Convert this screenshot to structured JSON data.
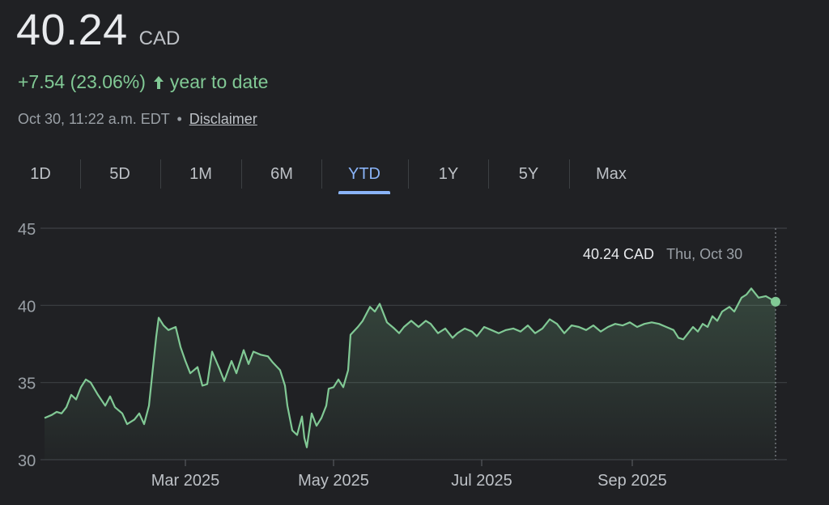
{
  "quote": {
    "price": "40.24",
    "currency": "CAD",
    "change": "+7.54 (23.06%)",
    "change_period": "year to date",
    "timestamp": "Oct 30, 11:22 a.m. EDT",
    "separator": "•",
    "disclaimer": "Disclaimer"
  },
  "tabs": [
    {
      "label": "1D",
      "active": false
    },
    {
      "label": "5D",
      "active": false
    },
    {
      "label": "1M",
      "active": false
    },
    {
      "label": "6M",
      "active": false
    },
    {
      "label": "YTD",
      "active": true
    },
    {
      "label": "1Y",
      "active": false
    },
    {
      "label": "5Y",
      "active": false
    },
    {
      "label": "Max",
      "active": false
    }
  ],
  "tooltip": {
    "price": "40.24 CAD",
    "date": "Thu, Oct 30"
  },
  "colors": {
    "up": "#81c995",
    "active_tab": "#8ab4f8",
    "background": "#202124"
  },
  "chart_data": {
    "type": "area",
    "x_axis": "dates",
    "xlim": [
      "2025-01-02",
      "2025-10-30"
    ],
    "ylim": [
      30,
      45
    ],
    "y_ticks": [
      30,
      35,
      40,
      45
    ],
    "x_ticks": [
      {
        "date": "2025-03-01",
        "label": "Mar 2025"
      },
      {
        "date": "2025-05-01",
        "label": "May 2025"
      },
      {
        "date": "2025-07-01",
        "label": "Jul 2025"
      },
      {
        "date": "2025-09-01",
        "label": "Sep 2025"
      }
    ],
    "grid": "horizontal",
    "series": [
      {
        "values": [
          [
            "2025-01-02",
            32.7
          ],
          [
            "2025-01-05",
            32.9
          ],
          [
            "2025-01-07",
            33.1
          ],
          [
            "2025-01-09",
            33.0
          ],
          [
            "2025-01-11",
            33.4
          ],
          [
            "2025-01-13",
            34.2
          ],
          [
            "2025-01-15",
            33.9
          ],
          [
            "2025-01-17",
            34.7
          ],
          [
            "2025-01-19",
            35.2
          ],
          [
            "2025-01-21",
            35.0
          ],
          [
            "2025-01-24",
            34.2
          ],
          [
            "2025-01-27",
            33.5
          ],
          [
            "2025-01-29",
            34.1
          ],
          [
            "2025-01-31",
            33.4
          ],
          [
            "2025-02-03",
            33.0
          ],
          [
            "2025-02-05",
            32.3
          ],
          [
            "2025-02-08",
            32.6
          ],
          [
            "2025-02-10",
            33.0
          ],
          [
            "2025-02-12",
            32.3
          ],
          [
            "2025-02-14",
            33.5
          ],
          [
            "2025-02-17",
            38.0
          ],
          [
            "2025-02-18",
            39.2
          ],
          [
            "2025-02-20",
            38.7
          ],
          [
            "2025-02-22",
            38.4
          ],
          [
            "2025-02-25",
            38.6
          ],
          [
            "2025-02-27",
            37.3
          ],
          [
            "2025-03-01",
            36.4
          ],
          [
            "2025-03-03",
            35.6
          ],
          [
            "2025-03-06",
            36.0
          ],
          [
            "2025-03-08",
            34.8
          ],
          [
            "2025-03-10",
            34.9
          ],
          [
            "2025-03-12",
            37.0
          ],
          [
            "2025-03-15",
            35.9
          ],
          [
            "2025-03-17",
            35.1
          ],
          [
            "2025-03-20",
            36.4
          ],
          [
            "2025-03-22",
            35.6
          ],
          [
            "2025-03-25",
            37.1
          ],
          [
            "2025-03-27",
            36.2
          ],
          [
            "2025-03-29",
            37.0
          ],
          [
            "2025-04-01",
            36.8
          ],
          [
            "2025-04-04",
            36.7
          ],
          [
            "2025-04-06",
            36.3
          ],
          [
            "2025-04-09",
            35.8
          ],
          [
            "2025-04-11",
            34.8
          ],
          [
            "2025-04-12",
            33.5
          ],
          [
            "2025-04-14",
            31.9
          ],
          [
            "2025-04-16",
            31.6
          ],
          [
            "2025-04-18",
            32.8
          ],
          [
            "2025-04-19",
            31.4
          ],
          [
            "2025-04-20",
            30.8
          ],
          [
            "2025-04-22",
            33.0
          ],
          [
            "2025-04-24",
            32.2
          ],
          [
            "2025-04-26",
            32.7
          ],
          [
            "2025-04-28",
            33.5
          ],
          [
            "2025-04-29",
            34.6
          ],
          [
            "2025-05-01",
            34.7
          ],
          [
            "2025-05-03",
            35.2
          ],
          [
            "2025-05-05",
            34.7
          ],
          [
            "2025-05-07",
            35.8
          ],
          [
            "2025-05-08",
            38.1
          ],
          [
            "2025-05-11",
            38.6
          ],
          [
            "2025-05-13",
            39.0
          ],
          [
            "2025-05-16",
            39.9
          ],
          [
            "2025-05-18",
            39.6
          ],
          [
            "2025-05-20",
            40.1
          ],
          [
            "2025-05-23",
            38.9
          ],
          [
            "2025-05-26",
            38.5
          ],
          [
            "2025-05-28",
            38.2
          ],
          [
            "2025-05-30",
            38.6
          ],
          [
            "2025-06-02",
            39.0
          ],
          [
            "2025-06-05",
            38.6
          ],
          [
            "2025-06-08",
            39.0
          ],
          [
            "2025-06-10",
            38.8
          ],
          [
            "2025-06-13",
            38.2
          ],
          [
            "2025-06-16",
            38.5
          ],
          [
            "2025-06-19",
            37.9
          ],
          [
            "2025-06-21",
            38.2
          ],
          [
            "2025-06-24",
            38.5
          ],
          [
            "2025-06-27",
            38.3
          ],
          [
            "2025-06-29",
            38.0
          ],
          [
            "2025-07-02",
            38.6
          ],
          [
            "2025-07-05",
            38.4
          ],
          [
            "2025-07-08",
            38.2
          ],
          [
            "2025-07-11",
            38.4
          ],
          [
            "2025-07-14",
            38.5
          ],
          [
            "2025-07-17",
            38.3
          ],
          [
            "2025-07-20",
            38.7
          ],
          [
            "2025-07-23",
            38.2
          ],
          [
            "2025-07-26",
            38.5
          ],
          [
            "2025-07-29",
            39.1
          ],
          [
            "2025-08-01",
            38.8
          ],
          [
            "2025-08-04",
            38.2
          ],
          [
            "2025-08-07",
            38.7
          ],
          [
            "2025-08-10",
            38.6
          ],
          [
            "2025-08-13",
            38.4
          ],
          [
            "2025-08-16",
            38.7
          ],
          [
            "2025-08-19",
            38.3
          ],
          [
            "2025-08-22",
            38.6
          ],
          [
            "2025-08-25",
            38.8
          ],
          [
            "2025-08-28",
            38.7
          ],
          [
            "2025-08-31",
            38.9
          ],
          [
            "2025-09-03",
            38.6
          ],
          [
            "2025-09-06",
            38.8
          ],
          [
            "2025-09-09",
            38.9
          ],
          [
            "2025-09-12",
            38.8
          ],
          [
            "2025-09-15",
            38.6
          ],
          [
            "2025-09-18",
            38.4
          ],
          [
            "2025-09-20",
            37.9
          ],
          [
            "2025-09-22",
            37.8
          ],
          [
            "2025-09-24",
            38.2
          ],
          [
            "2025-09-26",
            38.6
          ],
          [
            "2025-09-28",
            38.3
          ],
          [
            "2025-09-30",
            38.8
          ],
          [
            "2025-10-02",
            38.6
          ],
          [
            "2025-10-04",
            39.3
          ],
          [
            "2025-10-06",
            39.0
          ],
          [
            "2025-10-08",
            39.6
          ],
          [
            "2025-10-11",
            39.9
          ],
          [
            "2025-10-13",
            39.6
          ],
          [
            "2025-10-16",
            40.5
          ],
          [
            "2025-10-18",
            40.7
          ],
          [
            "2025-10-20",
            41.1
          ],
          [
            "2025-10-23",
            40.5
          ],
          [
            "2025-10-26",
            40.6
          ],
          [
            "2025-10-30",
            40.24
          ]
        ]
      }
    ]
  }
}
